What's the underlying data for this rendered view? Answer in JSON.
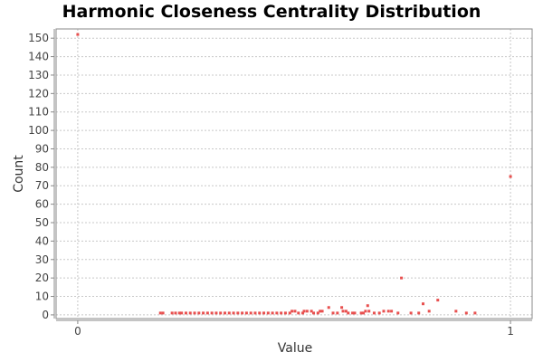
{
  "chart_data": {
    "type": "scatter",
    "title": "Harmonic Closeness Centrality Distribution",
    "xlabel": "Value",
    "ylabel": "Count",
    "xlim": [
      -0.05,
      1.05
    ],
    "ylim": [
      -2,
      155
    ],
    "x_ticks": [
      0,
      1
    ],
    "y_ticks": [
      0,
      10,
      20,
      30,
      40,
      50,
      60,
      70,
      80,
      90,
      100,
      110,
      120,
      130,
      140,
      150
    ],
    "grid": true,
    "legend": "none",
    "point_color": "#e8504f",
    "series": [
      {
        "points": [
          [
            0.0,
            152
          ],
          [
            0.191,
            1
          ],
          [
            0.197,
            1
          ],
          [
            0.218,
            1
          ],
          [
            0.226,
            1
          ],
          [
            0.235,
            1
          ],
          [
            0.24,
            1
          ],
          [
            0.25,
            1
          ],
          [
            0.26,
            1
          ],
          [
            0.27,
            1
          ],
          [
            0.28,
            1
          ],
          [
            0.29,
            1
          ],
          [
            0.3,
            1
          ],
          [
            0.31,
            1
          ],
          [
            0.32,
            1
          ],
          [
            0.33,
            1
          ],
          [
            0.34,
            1
          ],
          [
            0.35,
            1
          ],
          [
            0.36,
            1
          ],
          [
            0.37,
            1
          ],
          [
            0.38,
            1
          ],
          [
            0.39,
            1
          ],
          [
            0.4,
            1
          ],
          [
            0.41,
            1
          ],
          [
            0.42,
            1
          ],
          [
            0.43,
            1
          ],
          [
            0.44,
            1
          ],
          [
            0.45,
            1
          ],
          [
            0.46,
            1
          ],
          [
            0.47,
            1
          ],
          [
            0.48,
            1
          ],
          [
            0.49,
            1
          ],
          [
            0.495,
            2
          ],
          [
            0.502,
            2
          ],
          [
            0.51,
            1
          ],
          [
            0.52,
            1
          ],
          [
            0.523,
            2
          ],
          [
            0.53,
            2
          ],
          [
            0.54,
            2
          ],
          [
            0.545,
            1
          ],
          [
            0.555,
            1
          ],
          [
            0.56,
            2
          ],
          [
            0.565,
            2
          ],
          [
            0.58,
            4
          ],
          [
            0.59,
            1
          ],
          [
            0.6,
            1
          ],
          [
            0.61,
            4
          ],
          [
            0.613,
            2
          ],
          [
            0.62,
            2
          ],
          [
            0.625,
            1
          ],
          [
            0.635,
            1
          ],
          [
            0.64,
            1
          ],
          [
            0.655,
            1
          ],
          [
            0.66,
            1
          ],
          [
            0.665,
            2
          ],
          [
            0.67,
            5
          ],
          [
            0.673,
            2
          ],
          [
            0.685,
            1
          ],
          [
            0.697,
            1
          ],
          [
            0.707,
            2
          ],
          [
            0.718,
            2
          ],
          [
            0.725,
            2
          ],
          [
            0.74,
            1
          ],
          [
            0.748,
            20
          ],
          [
            0.77,
            1
          ],
          [
            0.788,
            1
          ],
          [
            0.798,
            6
          ],
          [
            0.812,
            2
          ],
          [
            0.832,
            8
          ],
          [
            0.874,
            2
          ],
          [
            0.898,
            1
          ],
          [
            0.918,
            1
          ],
          [
            1.0,
            75
          ]
        ]
      }
    ]
  }
}
